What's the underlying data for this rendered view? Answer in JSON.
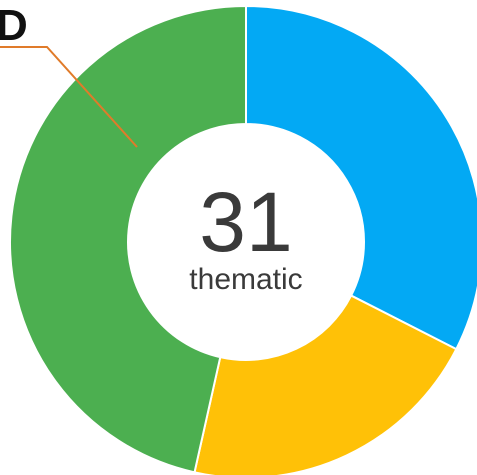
{
  "chart_data": {
    "type": "pie",
    "donut": true,
    "center_value": "31",
    "center_label": "thematic",
    "callout_label": "D",
    "slices": [
      {
        "value": 32.5,
        "color": "#03A9F4"
      },
      {
        "value": 21.0,
        "color": "#FFC107"
      },
      {
        "value": 46.5,
        "color": "#4CAF50"
      }
    ],
    "callout_color": "#E07B2A"
  }
}
